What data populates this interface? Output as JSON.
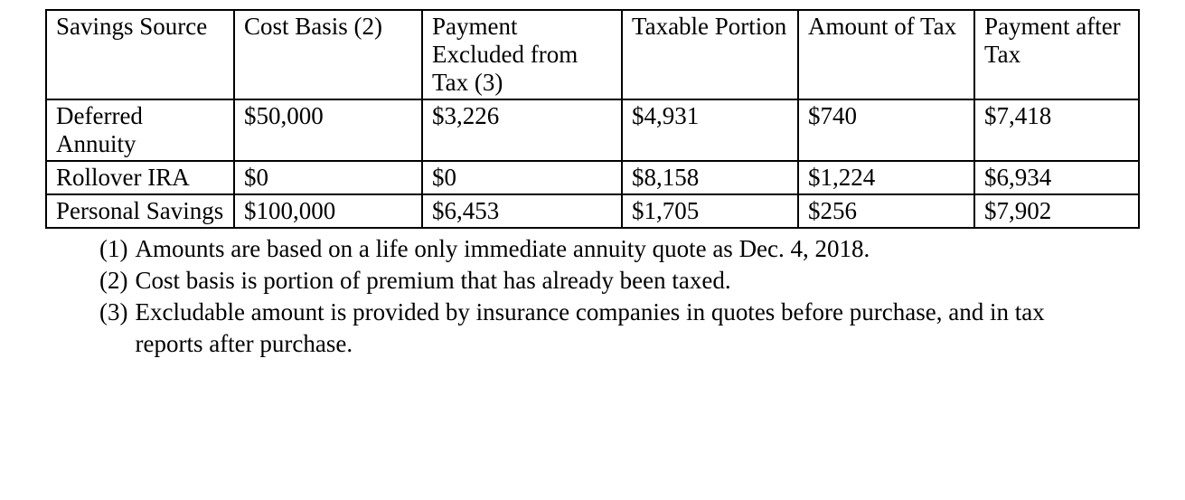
{
  "table": {
    "columns": [
      "Savings Source",
      "Cost Basis (2)",
      "Payment Excluded from Tax (3)",
      "Taxable Portion",
      "Amount of Tax",
      "Payment after Tax"
    ],
    "rows": [
      {
        "source": "Deferred Annuity",
        "cost_basis": "$50,000",
        "excluded": "$3,226",
        "taxable": "$4,931",
        "tax": "$740",
        "after_tax": "$7,418"
      },
      {
        "source": "Rollover IRA",
        "cost_basis": "$0",
        "excluded": " $0",
        "taxable": "$8,158",
        "tax": "$1,224",
        "after_tax": "$6,934"
      },
      {
        "source": "Personal Savings",
        "cost_basis": "$100,000",
        "excluded": "$6,453",
        "taxable": "$1,705",
        "tax": "$256",
        "after_tax": "$7,902"
      }
    ]
  },
  "footnotes": [
    {
      "num": "(1)",
      "text": "Amounts are based on a life only immediate annuity quote as Dec. 4, 2018."
    },
    {
      "num": "(2)",
      "text": "Cost basis is portion of premium that has already been taxed."
    },
    {
      "num": "(3)",
      "text": "Excludable amount is provided by insurance companies in quotes before purchase, and in tax reports after purchase."
    }
  ]
}
